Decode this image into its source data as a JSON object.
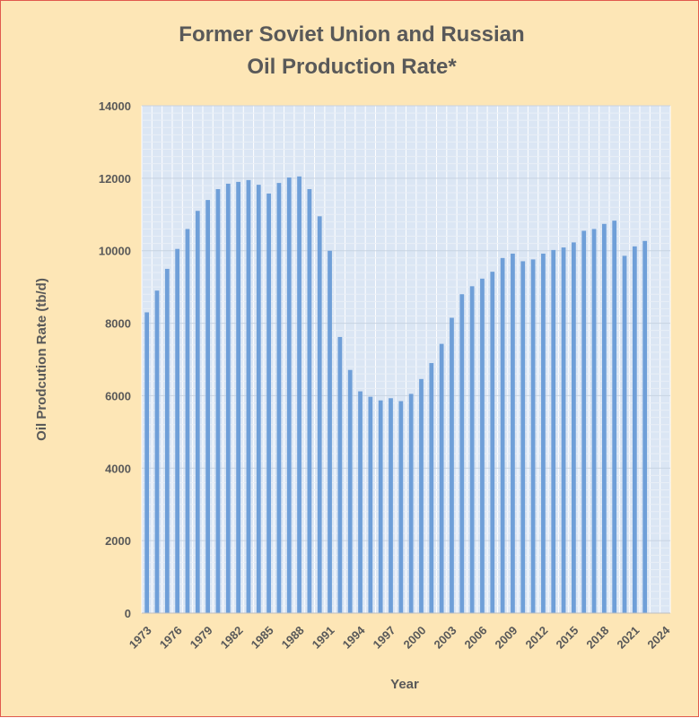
{
  "chart_data": {
    "type": "bar",
    "title_line1": "Former Soviet Union and Russian",
    "title_line2": "Oil Production Rate*",
    "xlabel": "Year",
    "ylabel": "Oil Prodcution Rate (tb/d)",
    "ylim": [
      0,
      14000
    ],
    "xlim": [
      1973,
      2024
    ],
    "yticks": [
      0,
      2000,
      4000,
      6000,
      8000,
      10000,
      12000,
      14000
    ],
    "xticks": [
      1973,
      1976,
      1979,
      1982,
      1985,
      1988,
      1991,
      1994,
      1997,
      2000,
      2003,
      2006,
      2009,
      2012,
      2015,
      2018,
      2021,
      2024
    ],
    "grid": true,
    "legend": "none",
    "bar_color": "#6f9fd8",
    "plot_background": "#dbe6f4",
    "page_background": "#fde6b6",
    "categories": [
      1973,
      1974,
      1975,
      1976,
      1977,
      1978,
      1979,
      1980,
      1981,
      1982,
      1983,
      1984,
      1985,
      1986,
      1987,
      1988,
      1989,
      1990,
      1991,
      1992,
      1993,
      1994,
      1995,
      1996,
      1997,
      1998,
      1999,
      2000,
      2001,
      2002,
      2003,
      2004,
      2005,
      2006,
      2007,
      2008,
      2009,
      2010,
      2011,
      2012,
      2013,
      2014,
      2015,
      2016,
      2017,
      2018,
      2019,
      2020,
      2021,
      2022
    ],
    "values": [
      8300,
      8900,
      9500,
      10050,
      10600,
      11100,
      11400,
      11700,
      11850,
      11900,
      11950,
      11820,
      11580,
      11870,
      12020,
      12050,
      11700,
      10950,
      10000,
      7620,
      6710,
      6120,
      5970,
      5870,
      5930,
      5850,
      6050,
      6460,
      6900,
      7430,
      8150,
      8800,
      9020,
      9230,
      9420,
      9800,
      9920,
      9710,
      9760,
      9920,
      10020,
      10090,
      10230,
      10550,
      10600,
      10740,
      10830,
      9860,
      10120,
      10270
    ]
  }
}
